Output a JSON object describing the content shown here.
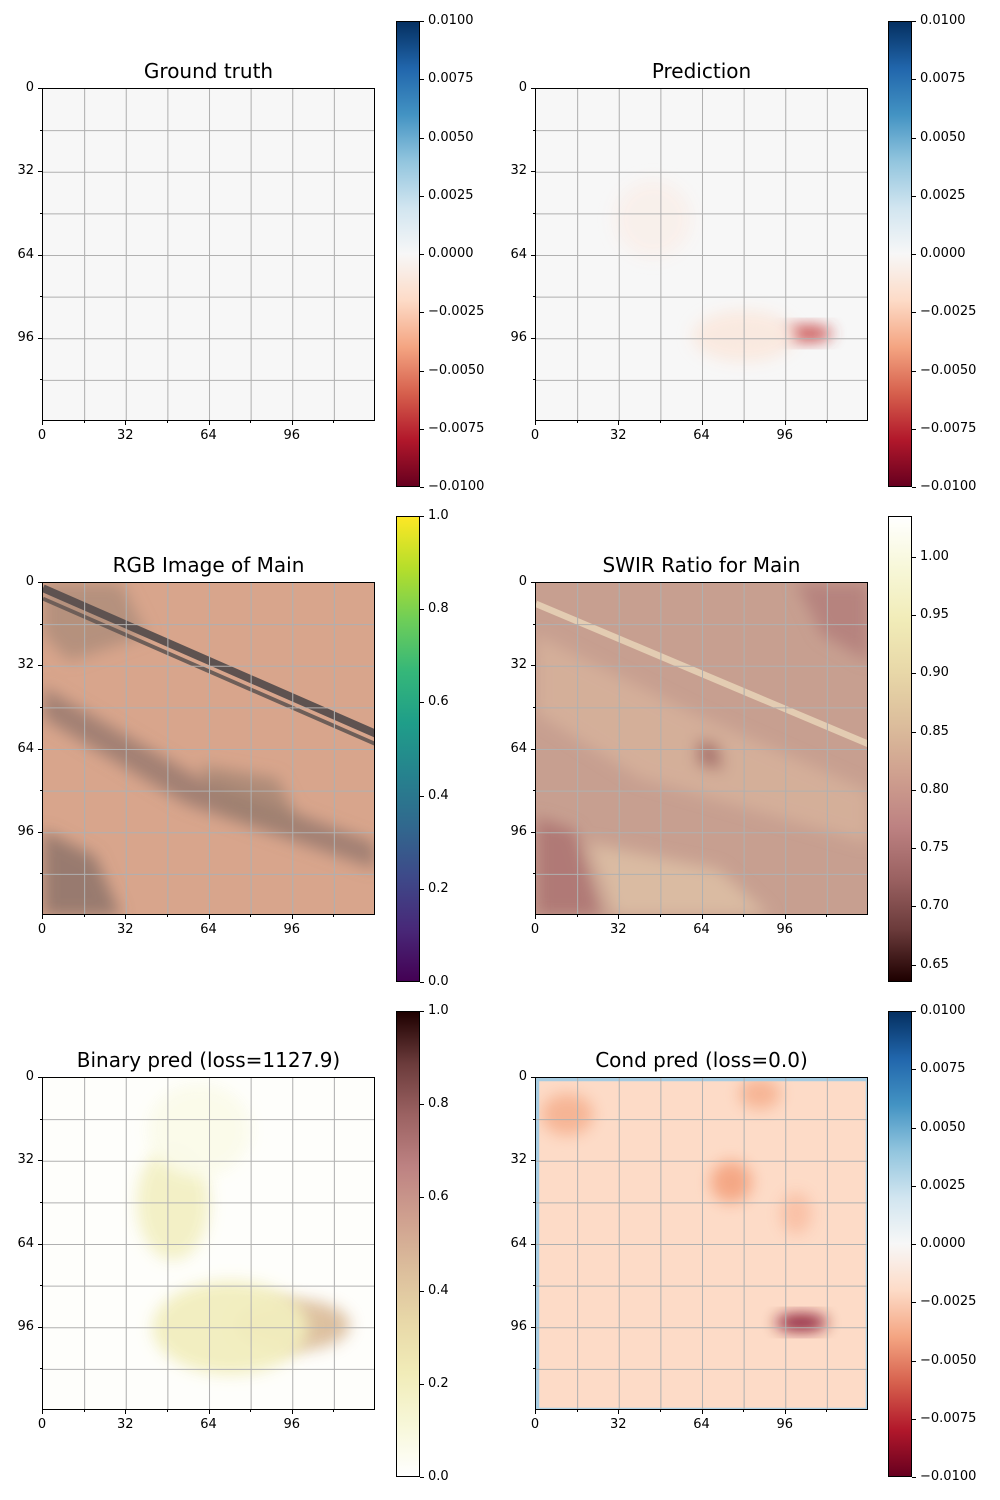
{
  "colors": {
    "RdBu": [
      "#67001f",
      "#b2182b",
      "#d6604d",
      "#f4a582",
      "#fddbc7",
      "#f7f7f7",
      "#d1e5f0",
      "#92c5de",
      "#4393c3",
      "#2166ac",
      "#053061"
    ],
    "viridis": [
      "#440154",
      "#482878",
      "#3e4989",
      "#31688e",
      "#26828e",
      "#1f9e89",
      "#35b779",
      "#6ece58",
      "#b5de2b",
      "#fde725"
    ],
    "pink": [
      "#1e0000",
      "#6b3b3b",
      "#9b6262",
      "#bd8282",
      "#cfa08f",
      "#dcbe9c",
      "#e8d8a8",
      "#f1ecb8",
      "#f7f7d8",
      "#ffffff"
    ],
    "background_light": "#f5f5f5"
  },
  "chart_data": [
    {
      "type": "heatmap",
      "title": "Ground truth",
      "x_ticks": [
        "0",
        "32",
        "64",
        "96"
      ],
      "y_ticks": [
        "0",
        "32",
        "64",
        "96"
      ],
      "xlim": [
        0,
        128
      ],
      "ylim": [
        128,
        0
      ],
      "grid": true,
      "colormap": "RdBu",
      "colorbar": {
        "min": -0.01,
        "max": 0.01,
        "ticks": [
          "0.0100",
          "0.0075",
          "0.0050",
          "0.0025",
          "0.0000",
          "−0.0025",
          "−0.0050",
          "−0.0075",
          "−0.0100"
        ]
      },
      "content": "uniform 0.0"
    },
    {
      "type": "heatmap",
      "title": "Prediction",
      "x_ticks": [
        "0",
        "32",
        "64",
        "96"
      ],
      "y_ticks": [
        "0",
        "32",
        "64",
        "96"
      ],
      "xlim": [
        0,
        128
      ],
      "ylim": [
        128,
        0
      ],
      "grid": true,
      "colormap": "RdBu",
      "colorbar": {
        "min": -0.01,
        "max": 0.01,
        "ticks": [
          "0.0100",
          "0.0075",
          "0.0050",
          "0.0025",
          "0.0000",
          "−0.0025",
          "−0.0050",
          "−0.0075",
          "−0.0100"
        ]
      },
      "blobs": [
        {
          "cx": 104,
          "cy": 94,
          "rx": 10,
          "ry": 3,
          "value": -0.007
        },
        {
          "cx": 80,
          "cy": 95,
          "rx": 20,
          "ry": 10,
          "value": -0.001
        },
        {
          "cx": 45,
          "cy": 50,
          "rx": 15,
          "ry": 15,
          "value": -0.0005
        }
      ]
    },
    {
      "type": "heatmap",
      "title": "RGB Image of Main",
      "x_ticks": [
        "0",
        "32",
        "64",
        "96"
      ],
      "y_ticks": [
        "0",
        "32",
        "64",
        "96"
      ],
      "xlim": [
        0,
        128
      ],
      "ylim": [
        128,
        0
      ],
      "grid": true,
      "colormap": "viridis",
      "colorbar": {
        "min": 0,
        "max": 1,
        "ticks": [
          "1.0",
          "0.8",
          "0.6",
          "0.4",
          "0.2",
          "0.0"
        ]
      },
      "content": "satellite RGB image"
    },
    {
      "type": "heatmap",
      "title": "SWIR Ratio for Main",
      "x_ticks": [
        "0",
        "32",
        "64",
        "96"
      ],
      "y_ticks": [
        "0",
        "32",
        "64",
        "96"
      ],
      "xlim": [
        0,
        128
      ],
      "ylim": [
        128,
        0
      ],
      "grid": true,
      "colormap": "pink",
      "colorbar": {
        "min": 0.635,
        "max": 1.035,
        "ticks": [
          "1.00",
          "0.95",
          "0.90",
          "0.85",
          "0.80",
          "0.75",
          "0.70",
          "0.65"
        ]
      },
      "content": "SWIR ratio map"
    },
    {
      "type": "heatmap",
      "title": "Binary pred (loss=1127.9)",
      "x_ticks": [
        "0",
        "32",
        "64",
        "96"
      ],
      "y_ticks": [
        "0",
        "32",
        "64",
        "96"
      ],
      "xlim": [
        0,
        128
      ],
      "ylim": [
        128,
        0
      ],
      "grid": true,
      "colormap": "pink_r",
      "colorbar": {
        "min": 0,
        "max": 1,
        "ticks": [
          "1.0",
          "0.8",
          "0.6",
          "0.4",
          "0.2",
          "0.0"
        ]
      },
      "blobs": [
        {
          "cx": 96,
          "cy": 95,
          "rx": 22,
          "ry": 10,
          "value": 0.45
        },
        {
          "cx": 72,
          "cy": 96,
          "rx": 30,
          "ry": 18,
          "value": 0.2
        },
        {
          "cx": 50,
          "cy": 48,
          "rx": 14,
          "ry": 22,
          "value": 0.18
        },
        {
          "cx": 60,
          "cy": 20,
          "rx": 20,
          "ry": 18,
          "value": 0.06
        }
      ]
    },
    {
      "type": "heatmap",
      "title": "Cond pred (loss=0.0)",
      "x_ticks": [
        "0",
        "32",
        "64",
        "96"
      ],
      "y_ticks": [
        "0",
        "32",
        "64",
        "96"
      ],
      "xlim": [
        0,
        128
      ],
      "ylim": [
        128,
        0
      ],
      "grid": true,
      "colormap": "RdBu",
      "colorbar": {
        "min": -0.01,
        "max": 0.01,
        "ticks": [
          "0.0100",
          "0.0075",
          "0.0050",
          "0.0025",
          "0.0000",
          "−0.0025",
          "−0.0050",
          "−0.0075",
          "−0.0100"
        ]
      },
      "background_value": -0.002,
      "blobs": [
        {
          "cx": 102,
          "cy": 94,
          "rx": 10,
          "ry": 3,
          "value": -0.0095
        },
        {
          "cx": 75,
          "cy": 40,
          "rx": 8,
          "ry": 8,
          "value": -0.004
        },
        {
          "cx": 12,
          "cy": 14,
          "rx": 10,
          "ry": 8,
          "value": -0.0035
        },
        {
          "cx": 86,
          "cy": 6,
          "rx": 8,
          "ry": 6,
          "value": -0.0035
        },
        {
          "cx": 100,
          "cy": 52,
          "rx": 6,
          "ry": 8,
          "value": -0.003
        }
      ]
    }
  ]
}
